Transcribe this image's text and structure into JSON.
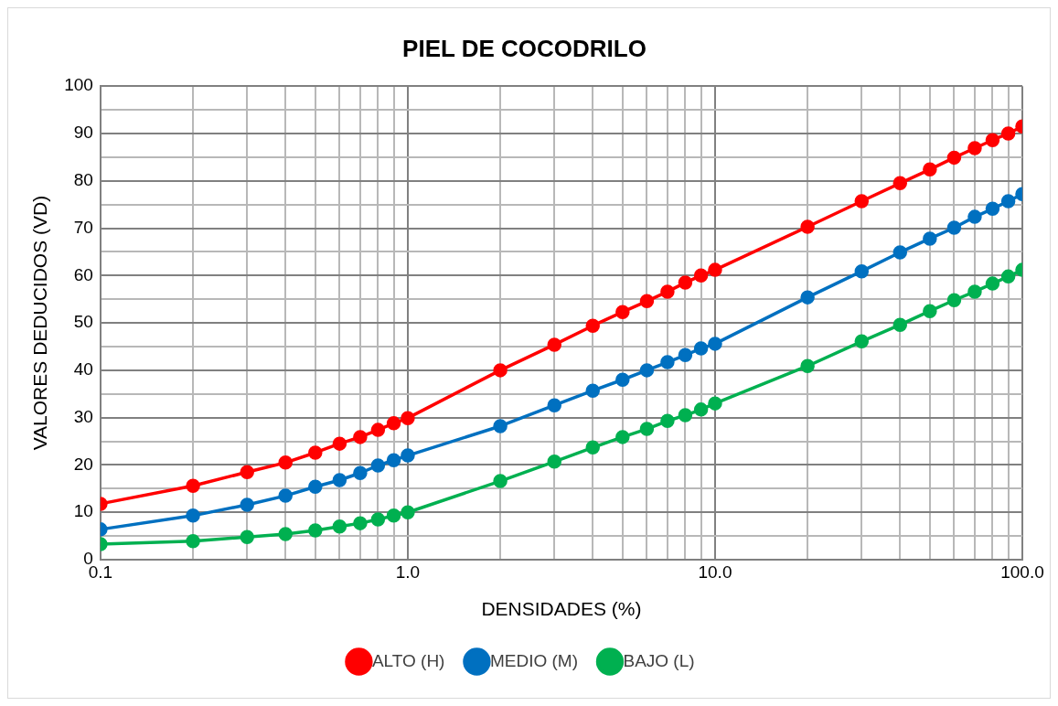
{
  "chart_data": {
    "type": "line",
    "title": "PIEL DE COCODRILO",
    "xlabel": "DENSIDADES (%)",
    "ylabel": "VALORES DEDUCIDOS (VD)",
    "x": [
      0.1,
      0.2,
      0.3,
      0.4,
      0.5,
      0.6,
      0.7,
      0.8,
      0.9,
      1,
      2,
      3,
      4,
      5,
      6,
      7,
      8,
      9,
      10,
      20,
      30,
      40,
      50,
      60,
      70,
      80,
      90,
      100
    ],
    "series": [
      {
        "name": "ALTO (H)",
        "color": "#ff0000",
        "values": [
          11.8,
          15.6,
          18.5,
          20.5,
          22.6,
          24.5,
          25.9,
          27.4,
          28.8,
          29.9,
          40,
          45.4,
          49.4,
          52.3,
          54.6,
          56.6,
          58.5,
          60,
          61.2,
          70.3,
          75.7,
          79.5,
          82.4,
          84.9,
          86.9,
          88.6,
          90,
          91.5
        ]
      },
      {
        "name": "MEDIO (M)",
        "color": "#0070c0",
        "values": [
          6.4,
          9.3,
          11.6,
          13.5,
          15.4,
          16.8,
          18.3,
          19.9,
          21,
          22,
          28.2,
          32.6,
          35.7,
          38,
          40,
          41.7,
          43.2,
          44.6,
          45.6,
          55.4,
          60.9,
          64.9,
          67.8,
          70.1,
          72.4,
          74.1,
          75.7,
          77.2
        ]
      },
      {
        "name": "BAJO (L)",
        "color": "#00b050",
        "values": [
          3.3,
          3.9,
          4.8,
          5.4,
          6.2,
          7,
          7.7,
          8.5,
          9.3,
          10,
          16.6,
          20.7,
          23.7,
          25.9,
          27.6,
          29.3,
          30.5,
          31.7,
          33,
          40.9,
          46.1,
          49.6,
          52.5,
          54.8,
          56.6,
          58.3,
          59.8,
          61.2
        ]
      }
    ],
    "log": "x",
    "xlim": [
      0.1,
      100
    ],
    "xticks": [
      {
        "value": 0.1,
        "label": "0.1"
      },
      {
        "value": 0.2,
        "label": null
      },
      {
        "value": 0.3,
        "label": null
      },
      {
        "value": 0.4,
        "label": null
      },
      {
        "value": 0.5,
        "label": null
      },
      {
        "value": 0.6,
        "label": null
      },
      {
        "value": 0.7,
        "label": null
      },
      {
        "value": 0.8,
        "label": null
      },
      {
        "value": 0.9,
        "label": null
      },
      {
        "value": 1,
        "label": "1.0"
      },
      {
        "value": 2,
        "label": null
      },
      {
        "value": 3,
        "label": null
      },
      {
        "value": 4,
        "label": null
      },
      {
        "value": 5,
        "label": null
      },
      {
        "value": 6,
        "label": null
      },
      {
        "value": 7,
        "label": null
      },
      {
        "value": 8,
        "label": null
      },
      {
        "value": 9,
        "label": null
      },
      {
        "value": 10,
        "label": "10.0"
      },
      {
        "value": 20,
        "label": null
      },
      {
        "value": 30,
        "label": null
      },
      {
        "value": 40,
        "label": null
      },
      {
        "value": 50,
        "label": null
      },
      {
        "value": 60,
        "label": null
      },
      {
        "value": 70,
        "label": null
      },
      {
        "value": 80,
        "label": null
      },
      {
        "value": 90,
        "label": null
      },
      {
        "value": 100,
        "label": "100.0"
      }
    ],
    "ylim": [
      0,
      100
    ],
    "yticks": [
      0,
      {
        "value": 5,
        "label": null
      },
      10,
      {
        "value": 15,
        "label": null
      },
      20,
      {
        "value": 25,
        "label": null
      },
      30,
      {
        "value": 35,
        "label": null
      },
      40,
      {
        "value": 45,
        "label": null
      },
      50,
      {
        "value": 55,
        "label": null
      },
      60,
      {
        "value": 65,
        "label": null
      },
      70,
      {
        "value": 75,
        "label": null
      },
      80,
      {
        "value": 85,
        "label": null
      },
      90,
      {
        "value": 95,
        "label": null
      },
      100
    ],
    "grid": true,
    "legend": "bottom",
    "marker": "circle",
    "line_style": "solid"
  }
}
